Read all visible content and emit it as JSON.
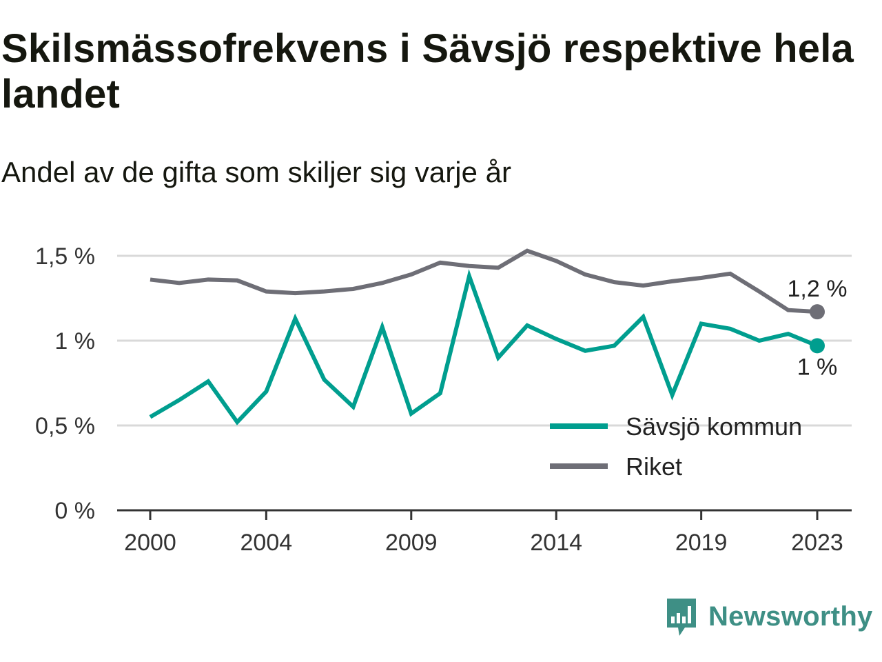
{
  "title": "Skilsmässofrekvens i Sävsjö respektive hela landet",
  "subtitle": "Andel av de gifta som skiljer sig varje år",
  "brand": {
    "name": "Newsworthy",
    "icon": "newsworthy-logo-icon",
    "color": "#3e8f85"
  },
  "colors": {
    "savsjo": "#009e8f",
    "riket": "#6e6e76",
    "grid": "#d9d9d9",
    "axis": "#333333"
  },
  "chart_data": {
    "type": "line",
    "x": [
      2000,
      2001,
      2002,
      2003,
      2004,
      2005,
      2006,
      2007,
      2008,
      2009,
      2010,
      2011,
      2012,
      2013,
      2014,
      2015,
      2016,
      2017,
      2018,
      2019,
      2020,
      2021,
      2022,
      2023
    ],
    "series": [
      {
        "name": "Sävsjö kommun",
        "color": "#009e8f",
        "values": [
          0.55,
          0.65,
          0.76,
          0.52,
          0.7,
          1.13,
          0.77,
          0.61,
          1.08,
          0.57,
          0.69,
          1.38,
          0.9,
          1.09,
          1.01,
          0.94,
          0.97,
          1.14,
          0.68,
          1.1,
          1.07,
          1.0,
          1.04,
          0.97
        ],
        "end_label": "1 %"
      },
      {
        "name": "Riket",
        "color": "#6e6e76",
        "values": [
          1.36,
          1.34,
          1.36,
          1.355,
          1.29,
          1.28,
          1.29,
          1.305,
          1.34,
          1.39,
          1.46,
          1.44,
          1.43,
          1.53,
          1.47,
          1.39,
          1.345,
          1.325,
          1.35,
          1.37,
          1.395,
          1.29,
          1.18,
          1.17
        ],
        "end_label": "1,2 %"
      }
    ],
    "ylim": [
      0,
      1.5
    ],
    "yticks": [
      {
        "value": 0,
        "label": "0 %"
      },
      {
        "value": 0.5,
        "label": "0,5 %"
      },
      {
        "value": 1,
        "label": "1 %"
      },
      {
        "value": 1.5,
        "label": "1,5 %"
      }
    ],
    "xticks": [
      {
        "value": 2000,
        "label": "2000"
      },
      {
        "value": 2004,
        "label": "2004"
      },
      {
        "value": 2009,
        "label": "2009"
      },
      {
        "value": 2014,
        "label": "2014"
      },
      {
        "value": 2019,
        "label": "2019"
      },
      {
        "value": 2023,
        "label": "2023"
      }
    ],
    "xlim": [
      2000,
      2023
    ],
    "grid": true,
    "legend_position": "bottom-right"
  }
}
